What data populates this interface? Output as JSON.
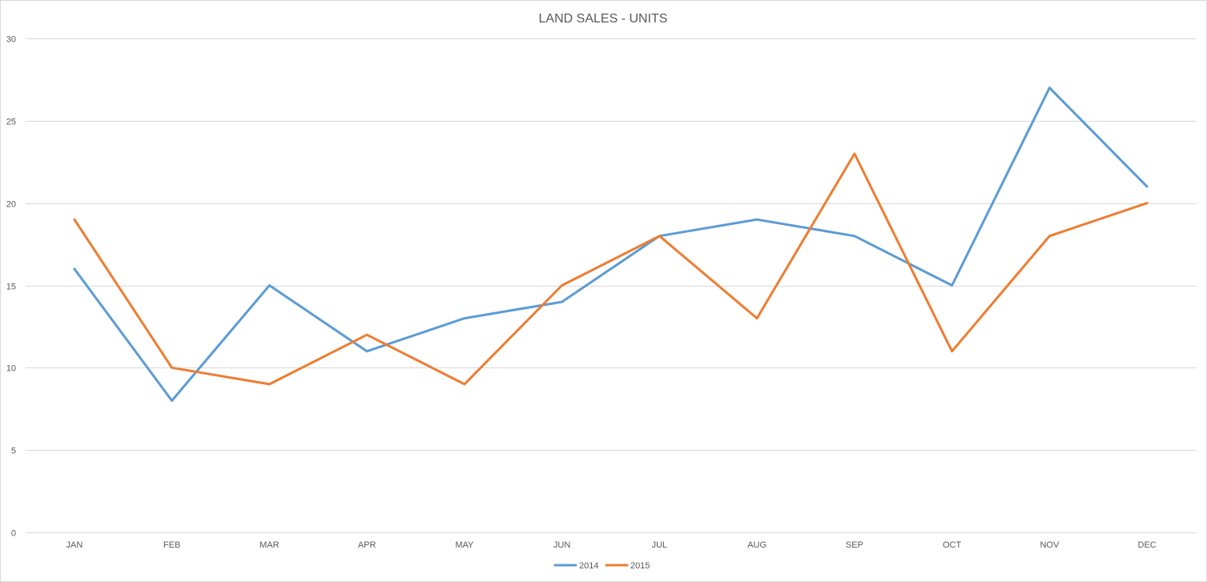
{
  "chart_data": {
    "type": "line",
    "title": "LAND SALES - UNITS",
    "xlabel": "",
    "ylabel": "",
    "categories": [
      "JAN",
      "FEB",
      "MAR",
      "APR",
      "MAY",
      "JUN",
      "JUL",
      "AUG",
      "SEP",
      "OCT",
      "NOV",
      "DEC"
    ],
    "ylim": [
      0,
      30
    ],
    "yticks": [
      0,
      5,
      10,
      15,
      20,
      25,
      30
    ],
    "grid": true,
    "legend_position": "bottom",
    "series": [
      {
        "name": "2014",
        "color": "#5b9bd5",
        "values": [
          16,
          8,
          15,
          11,
          13,
          14,
          18,
          19,
          18,
          15,
          27,
          21
        ]
      },
      {
        "name": "2015",
        "color": "#ed7d31",
        "values": [
          19,
          10,
          9,
          12,
          9,
          15,
          18,
          13,
          23,
          11,
          18,
          20
        ]
      }
    ]
  }
}
